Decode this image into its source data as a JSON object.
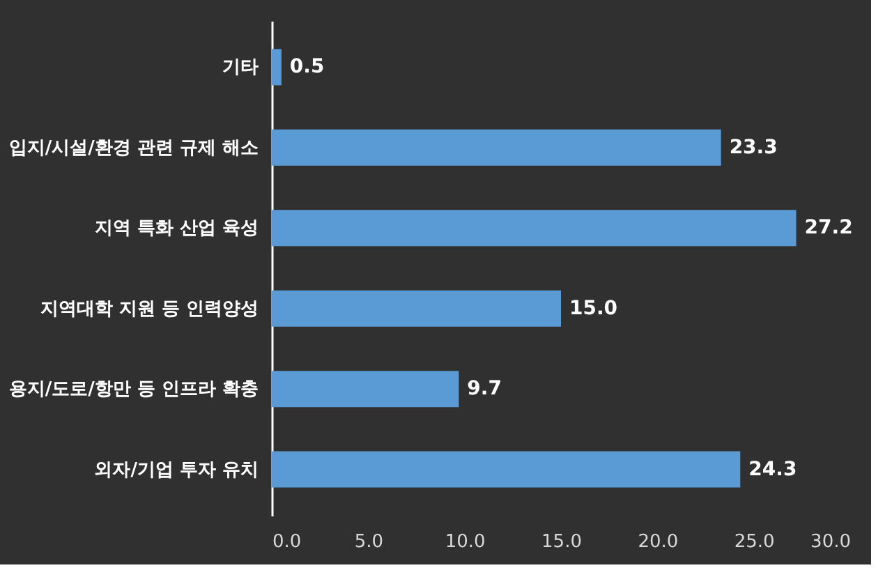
{
  "chart_data": {
    "type": "bar",
    "orientation": "horizontal",
    "categories": [
      "기타",
      "입지/시설/환경 관련 규제 해소",
      "지역 특화 산업 육성",
      "지역대학 지원 등 인력양성",
      "용지/도로/항만 등 인프라 확충",
      "외자/기업 투자 유치"
    ],
    "values": [
      0.5,
      23.3,
      27.2,
      15.0,
      9.7,
      24.3
    ],
    "value_labels": [
      "0.5",
      "23.3",
      "27.2",
      "15.0",
      "9.7",
      "24.3"
    ],
    "color": "#5b9bd5",
    "xlim": [
      0,
      30
    ],
    "xticks": [
      {
        "value": 0,
        "label": "0.0"
      },
      {
        "value": 5,
        "label": "5.0"
      },
      {
        "value": 10,
        "label": "10.0"
      },
      {
        "value": 15,
        "label": "15.0"
      },
      {
        "value": 20,
        "label": "20.0"
      },
      {
        "value": 25,
        "label": "25.0"
      },
      {
        "value": 30,
        "label": "30.0"
      }
    ],
    "grid": false
  }
}
